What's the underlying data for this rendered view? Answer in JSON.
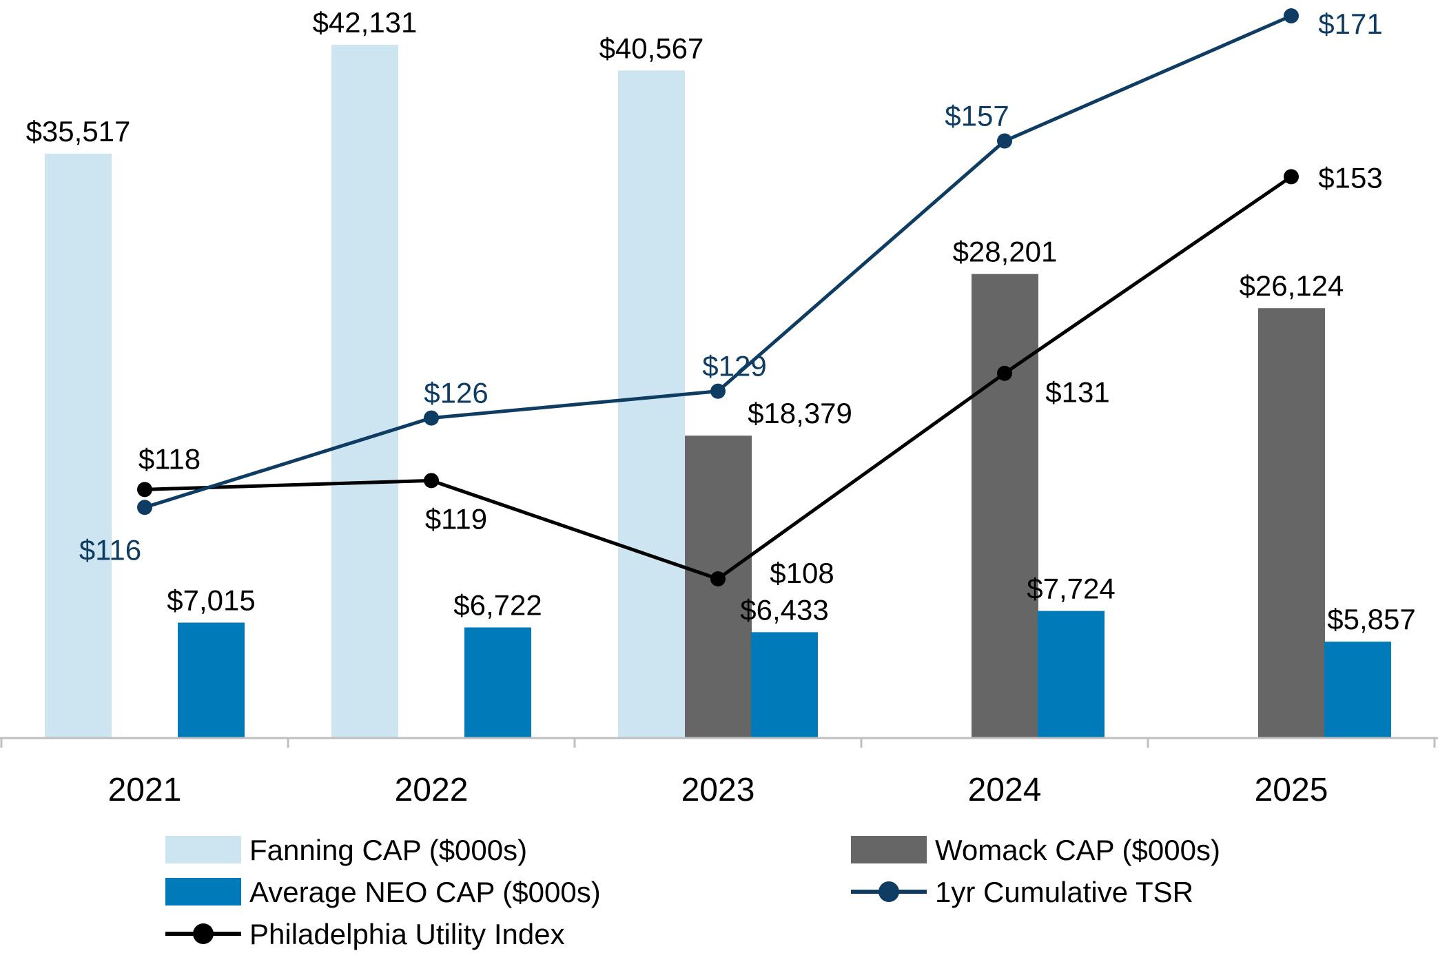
{
  "chart_data": {
    "type": "bar",
    "title": "",
    "xlabel": "",
    "ylabel": "",
    "categories": [
      "2021",
      "2022",
      "2023",
      "2024",
      "2025"
    ],
    "series": [
      {
        "name": "Fanning CAP ($000s)",
        "type": "bar",
        "color": "#cde5f1",
        "values": [
          35517,
          42131,
          40567,
          null,
          null
        ],
        "labels": [
          "$35,517",
          "$42,131",
          "$40,567",
          null,
          null
        ]
      },
      {
        "name": "Womack CAP ($000s)",
        "type": "bar",
        "color": "#666666",
        "values": [
          null,
          null,
          18379,
          28201,
          26124
        ],
        "labels": [
          null,
          null,
          "$18,379",
          "$28,201",
          "$26,124"
        ]
      },
      {
        "name": "Average NEO CAP ($000s)",
        "type": "bar",
        "color": "#007ab8",
        "values": [
          7015,
          6722,
          6433,
          7724,
          5857
        ],
        "labels": [
          "$7,015",
          "$6,722",
          "$6,433",
          "$7,724",
          "$5,857"
        ]
      },
      {
        "name": "1yr Cumulative TSR",
        "type": "line",
        "color": "#0e3c62",
        "values": [
          116,
          126,
          129,
          157,
          171
        ],
        "labels": [
          "$116",
          "$126",
          "$129",
          "$157",
          "$171"
        ]
      },
      {
        "name": "Philadelphia Utility Index",
        "type": "line",
        "color": "#000000",
        "values": [
          118,
          119,
          108,
          131,
          153
        ],
        "labels": [
          "$118",
          "$119",
          "$108",
          "$131",
          "$153"
        ]
      }
    ],
    "bar_ylim": [
      0,
      45000
    ],
    "line_ylim": [
      0,
      180
    ],
    "grid": false,
    "legend": {
      "placement": "bottom",
      "items": [
        {
          "label": "Fanning CAP ($000s)",
          "kind": "bar",
          "color": "#cde5f1"
        },
        {
          "label": "Womack CAP ($000s)",
          "kind": "bar",
          "color": "#666666"
        },
        {
          "label": "Average NEO CAP ($000s)",
          "kind": "bar",
          "color": "#007ab8"
        },
        {
          "label": "1yr Cumulative TSR",
          "kind": "line",
          "color": "#0e3c62"
        },
        {
          "label": "Philadelphia Utility Index",
          "kind": "line",
          "color": "#000000"
        }
      ]
    }
  }
}
